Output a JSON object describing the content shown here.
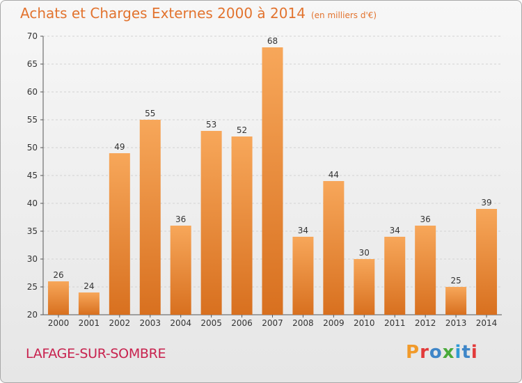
{
  "header": {
    "title": "Achats et Charges Externes 2000 à 2014",
    "unit": "(en milliers d'€)"
  },
  "footer": {
    "town": "LAFAGE-SUR-SOMBRE",
    "brand": "Proxiti"
  },
  "colors": {
    "title": "#e2732e",
    "town": "#c8224e",
    "bar_light": "#f7a75a",
    "bar_dark": "#d8701f",
    "brand_letters": [
      "#f19a2a",
      "#e23a3a",
      "#3f86c8",
      "#4aaa3a",
      "#2e9ad6",
      "#3f86c8",
      "#e23a3a"
    ]
  },
  "chart_data": {
    "type": "bar",
    "categories": [
      "2000",
      "2001",
      "2002",
      "2003",
      "2004",
      "2005",
      "2006",
      "2007",
      "2008",
      "2009",
      "2010",
      "2011",
      "2012",
      "2013",
      "2014"
    ],
    "values": [
      26,
      24,
      49,
      55,
      36,
      53,
      52,
      68,
      34,
      44,
      30,
      34,
      36,
      25,
      39
    ],
    "title": "Achats et Charges Externes 2000 à 2014",
    "ylim": [
      20,
      70
    ],
    "yticks": [
      20,
      25,
      30,
      35,
      40,
      45,
      50,
      55,
      60,
      65,
      70
    ],
    "grid": true,
    "data_labels": true
  }
}
